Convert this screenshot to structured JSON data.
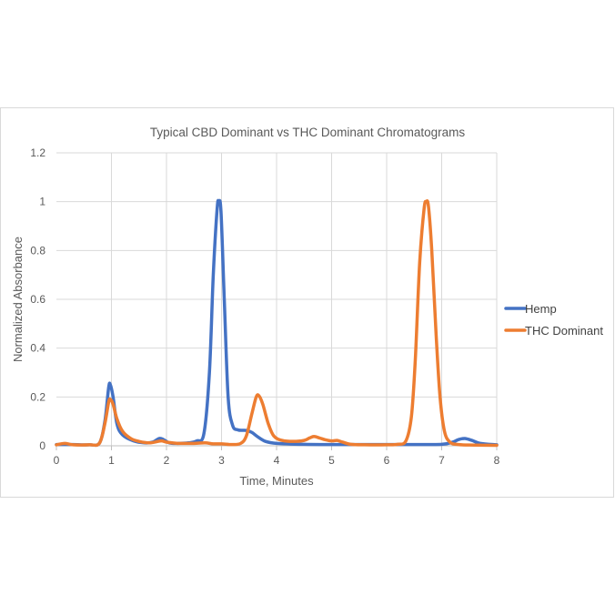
{
  "chart_data": {
    "type": "line",
    "title": "Typical CBD Dominant vs THC Dominant Chromatograms",
    "xlabel": "Time, Minutes",
    "ylabel": "Normalized  Absorbance",
    "xlim": [
      0,
      8
    ],
    "ylim": [
      0,
      1.2
    ],
    "x_ticks": [
      "0",
      "1",
      "2",
      "3",
      "4",
      "5",
      "6",
      "7",
      "8"
    ],
    "y_ticks": [
      "0",
      "0.2",
      "0.4",
      "0.6",
      "0.8",
      "1",
      "1.2"
    ],
    "grid": true,
    "legend_position": "right",
    "series": [
      {
        "name": "Hemp",
        "color": "#4472c4",
        "points": [
          [
            0,
            0.005
          ],
          [
            0.3,
            0.005
          ],
          [
            0.6,
            0.004
          ],
          [
            0.78,
            0.01
          ],
          [
            0.88,
            0.1
          ],
          [
            0.95,
            0.24
          ],
          [
            0.98,
            0.25
          ],
          [
            1.03,
            0.2
          ],
          [
            1.1,
            0.09
          ],
          [
            1.2,
            0.045
          ],
          [
            1.4,
            0.02
          ],
          [
            1.6,
            0.012
          ],
          [
            1.75,
            0.015
          ],
          [
            1.87,
            0.03
          ],
          [
            1.95,
            0.025
          ],
          [
            2.05,
            0.012
          ],
          [
            2.2,
            0.01
          ],
          [
            2.4,
            0.012
          ],
          [
            2.55,
            0.02
          ],
          [
            2.68,
            0.05
          ],
          [
            2.78,
            0.3
          ],
          [
            2.85,
            0.7
          ],
          [
            2.92,
            0.97
          ],
          [
            2.95,
            1.0
          ],
          [
            2.99,
            0.96
          ],
          [
            3.05,
            0.6
          ],
          [
            3.12,
            0.2
          ],
          [
            3.2,
            0.085
          ],
          [
            3.3,
            0.065
          ],
          [
            3.45,
            0.063
          ],
          [
            3.55,
            0.055
          ],
          [
            3.65,
            0.038
          ],
          [
            3.8,
            0.018
          ],
          [
            4.0,
            0.01
          ],
          [
            4.5,
            0.006
          ],
          [
            5.0,
            0.005
          ],
          [
            5.5,
            0.005
          ],
          [
            6.0,
            0.005
          ],
          [
            6.5,
            0.005
          ],
          [
            7.0,
            0.006
          ],
          [
            7.2,
            0.015
          ],
          [
            7.3,
            0.025
          ],
          [
            7.42,
            0.03
          ],
          [
            7.55,
            0.022
          ],
          [
            7.7,
            0.01
          ],
          [
            8.0,
            0.004
          ]
        ]
      },
      {
        "name": "THC Dominant",
        "color": "#ed7d31",
        "points": [
          [
            0,
            0.004
          ],
          [
            0.15,
            0.01
          ],
          [
            0.3,
            0.004
          ],
          [
            0.6,
            0.004
          ],
          [
            0.78,
            0.01
          ],
          [
            0.88,
            0.09
          ],
          [
            0.95,
            0.18
          ],
          [
            0.98,
            0.19
          ],
          [
            1.03,
            0.17
          ],
          [
            1.1,
            0.11
          ],
          [
            1.2,
            0.06
          ],
          [
            1.35,
            0.03
          ],
          [
            1.5,
            0.018
          ],
          [
            1.7,
            0.012
          ],
          [
            1.9,
            0.02
          ],
          [
            2.0,
            0.015
          ],
          [
            2.2,
            0.01
          ],
          [
            2.5,
            0.01
          ],
          [
            2.7,
            0.012
          ],
          [
            2.85,
            0.008
          ],
          [
            3.0,
            0.008
          ],
          [
            3.2,
            0.005
          ],
          [
            3.35,
            0.01
          ],
          [
            3.45,
            0.04
          ],
          [
            3.55,
            0.13
          ],
          [
            3.63,
            0.2
          ],
          [
            3.68,
            0.205
          ],
          [
            3.75,
            0.17
          ],
          [
            3.85,
            0.09
          ],
          [
            3.95,
            0.04
          ],
          [
            4.1,
            0.022
          ],
          [
            4.3,
            0.018
          ],
          [
            4.5,
            0.022
          ],
          [
            4.6,
            0.032
          ],
          [
            4.68,
            0.038
          ],
          [
            4.78,
            0.032
          ],
          [
            4.88,
            0.025
          ],
          [
            5.0,
            0.02
          ],
          [
            5.1,
            0.022
          ],
          [
            5.2,
            0.015
          ],
          [
            5.35,
            0.006
          ],
          [
            5.6,
            0.004
          ],
          [
            6.0,
            0.004
          ],
          [
            6.2,
            0.006
          ],
          [
            6.35,
            0.02
          ],
          [
            6.45,
            0.12
          ],
          [
            6.52,
            0.35
          ],
          [
            6.6,
            0.75
          ],
          [
            6.68,
            0.97
          ],
          [
            6.72,
            1.0
          ],
          [
            6.76,
            0.98
          ],
          [
            6.82,
            0.8
          ],
          [
            6.9,
            0.45
          ],
          [
            6.97,
            0.2
          ],
          [
            7.05,
            0.06
          ],
          [
            7.15,
            0.015
          ],
          [
            7.3,
            0.005
          ],
          [
            7.6,
            0.003
          ],
          [
            8.0,
            0.002
          ]
        ]
      }
    ]
  }
}
